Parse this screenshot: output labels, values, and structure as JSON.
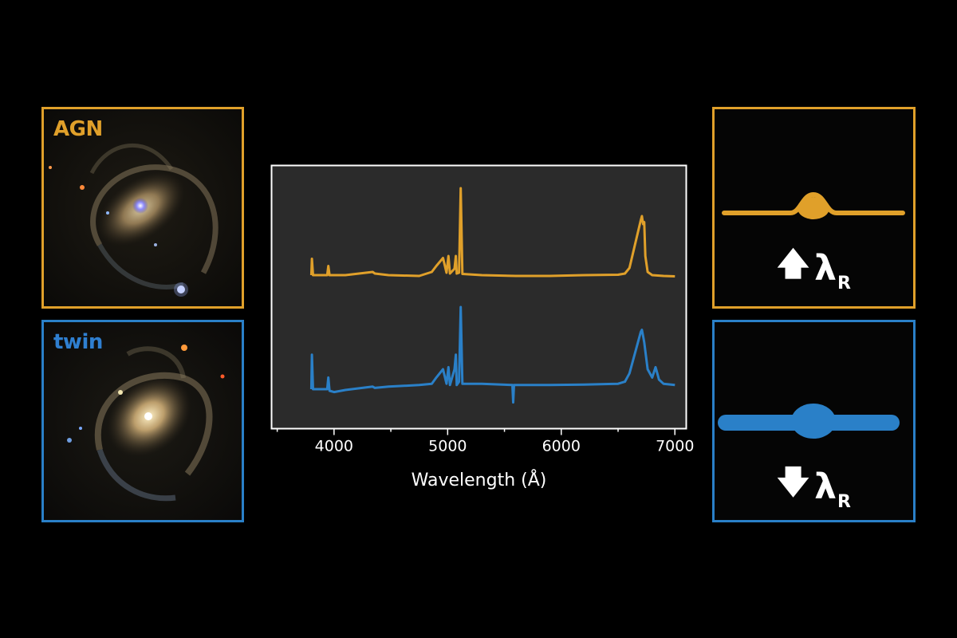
{
  "panels": {
    "agn": {
      "label": "AGN",
      "color": "#e0a02a"
    },
    "twin": {
      "label": "twin",
      "color": "#2a80c8"
    }
  },
  "lambda": {
    "agn": {
      "arrow": "🡅",
      "symbol": "λ",
      "subscript": "R"
    },
    "twin": {
      "arrow": "🡇",
      "symbol": "λ",
      "subscript": "R"
    }
  },
  "chart_data": {
    "type": "line",
    "xlabel": "Wavelength (Å)",
    "ylabel": "",
    "xlim": [
      3450,
      7100
    ],
    "x_ticks": [
      4000,
      5000,
      6000,
      7000
    ],
    "grid": false,
    "legend": "none",
    "series": [
      {
        "color": "#e0a02a",
        "x": [
          3800,
          3805,
          3815,
          3940,
          3950,
          3960,
          4100,
          4340,
          4360,
          4480,
          4750,
          4860,
          4900,
          4959,
          4990,
          5007,
          5020,
          5060,
          5072,
          5080,
          5100,
          5115,
          5130,
          5300,
          5600,
          5900,
          6200,
          6500,
          6560,
          6600,
          6650,
          6700,
          6710,
          6720,
          6730,
          6740,
          6760,
          6800,
          6900,
          7000
        ],
        "y": [
          0.52,
          0.93,
          0.52,
          0.52,
          0.75,
          0.52,
          0.52,
          0.6,
          0.56,
          0.52,
          0.5,
          0.6,
          0.75,
          0.95,
          0.58,
          1.0,
          0.56,
          0.68,
          1.0,
          0.56,
          0.58,
          2.7,
          0.55,
          0.52,
          0.5,
          0.5,
          0.52,
          0.53,
          0.56,
          0.7,
          1.3,
          1.9,
          2.0,
          1.8,
          1.85,
          1.0,
          0.6,
          0.52,
          0.5,
          0.49
        ]
      },
      {
        "color": "#2a80c8",
        "x": [
          3800,
          3805,
          3815,
          3940,
          3950,
          3960,
          4000,
          4100,
          4340,
          4360,
          4480,
          4750,
          4860,
          4900,
          4959,
          4990,
          5007,
          5020,
          5060,
          5072,
          5080,
          5100,
          5115,
          5130,
          5300,
          5570,
          5577,
          5584,
          5900,
          6200,
          6500,
          6560,
          6600,
          6650,
          6700,
          6710,
          6720,
          6730,
          6760,
          6800,
          6830,
          6845,
          6860,
          6900,
          7000
        ],
        "y": [
          0.02,
          0.85,
          0.02,
          0.02,
          0.3,
          -0.02,
          -0.05,
          0.0,
          0.08,
          0.05,
          0.08,
          0.12,
          0.15,
          0.3,
          0.5,
          0.15,
          0.55,
          0.12,
          0.5,
          0.85,
          0.12,
          0.2,
          2.0,
          0.15,
          0.15,
          0.12,
          -0.3,
          0.12,
          0.12,
          0.13,
          0.15,
          0.2,
          0.4,
          0.9,
          1.4,
          1.45,
          1.3,
          1.15,
          0.5,
          0.3,
          0.55,
          0.4,
          0.25,
          0.15,
          0.12
        ]
      }
    ]
  }
}
